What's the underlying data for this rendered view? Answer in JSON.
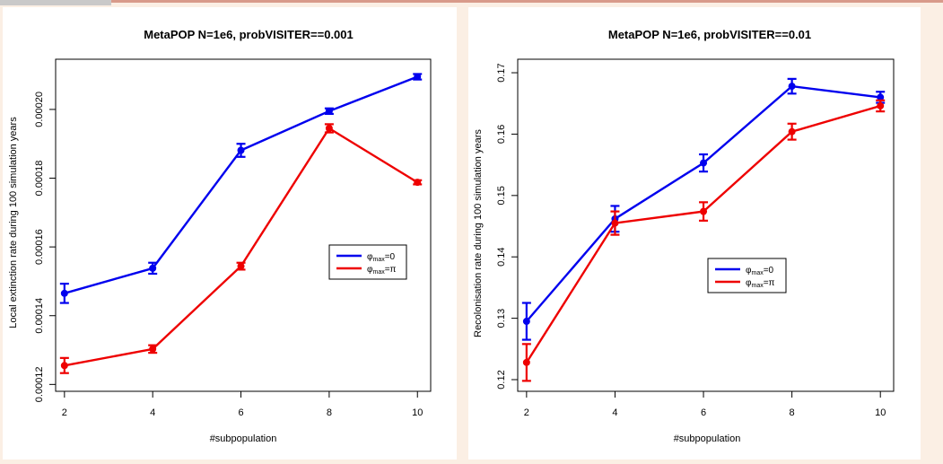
{
  "colors": {
    "blue": "#0000ee",
    "red": "#ee0000",
    "page_background": "#fbefe4",
    "panel_background": "#ffffff"
  },
  "chart_data": [
    {
      "type": "line",
      "title": "MetaPOP N=1e6, probVISITER==0.001",
      "xlabel": "#subpopulation",
      "ylabel": "Local extinction rate during 100 simulation years",
      "x": [
        2,
        4,
        6,
        8,
        10
      ],
      "xticks": [
        "2",
        "4",
        "6",
        "8",
        "10"
      ],
      "xlim": [
        1.8,
        10.3
      ],
      "yticks": [
        0.00012,
        0.00014,
        0.00016,
        0.00018,
        0.0002
      ],
      "ytick_labels": [
        "0.00012",
        "0.00014",
        "0.00016",
        "0.00018",
        "0.00020"
      ],
      "ylim": [
        0.000118,
        0.0002146
      ],
      "legend_position": "right",
      "series": [
        {
          "name": "φmax=0",
          "name_main": "φ",
          "name_sub": "max",
          "name_rest": "=0",
          "color": "#0000ee",
          "values": [
            0.0001465,
            0.0001538,
            0.0001881,
            0.0001995,
            0.0002095
          ],
          "err": [
            2.8e-06,
            1.6e-06,
            1.9e-06,
            8e-07,
            8e-07
          ]
        },
        {
          "name": "φmax=π",
          "name_main": "φ",
          "name_sub": "max",
          "name_rest": "=π",
          "color": "#ee0000",
          "values": [
            0.0001255,
            0.0001303,
            0.0001544,
            0.0001945,
            0.0001788
          ],
          "err": [
            2.2e-06,
            1.1e-06,
            1e-06,
            1.2e-06,
            6e-07
          ]
        }
      ]
    },
    {
      "type": "line",
      "title": "MetaPOP N=1e6, probVISITER==0.01",
      "xlabel": "#subpopulation",
      "ylabel": "Recolonisation rate during 100 simulation years",
      "x": [
        2,
        4,
        6,
        8,
        10
      ],
      "xticks": [
        "2",
        "4",
        "6",
        "8",
        "10"
      ],
      "xlim": [
        1.8,
        10.3
      ],
      "yticks": [
        0.12,
        0.13,
        0.14,
        0.15,
        0.16,
        0.17
      ],
      "ytick_labels": [
        "0.12",
        "0.13",
        "0.14",
        "0.15",
        "0.16",
        "0.17"
      ],
      "ylim": [
        0.1181,
        0.1722
      ],
      "legend_position": "right",
      "series": [
        {
          "name": "φmax=0",
          "name_main": "φ",
          "name_sub": "max",
          "name_rest": "=0",
          "color": "#0000ee",
          "values": [
            0.1295,
            0.1462,
            0.1553,
            0.1678,
            0.166
          ],
          "err": [
            0.003,
            0.0021,
            0.0014,
            0.0012,
            0.0009
          ]
        },
        {
          "name": "φmax=π",
          "name_main": "φ",
          "name_sub": "max",
          "name_rest": "=π",
          "color": "#ee0000",
          "values": [
            0.1228,
            0.1455,
            0.1474,
            0.1604,
            0.1646
          ],
          "err": [
            0.003,
            0.0019,
            0.0015,
            0.0013,
            0.0009
          ]
        }
      ]
    }
  ]
}
